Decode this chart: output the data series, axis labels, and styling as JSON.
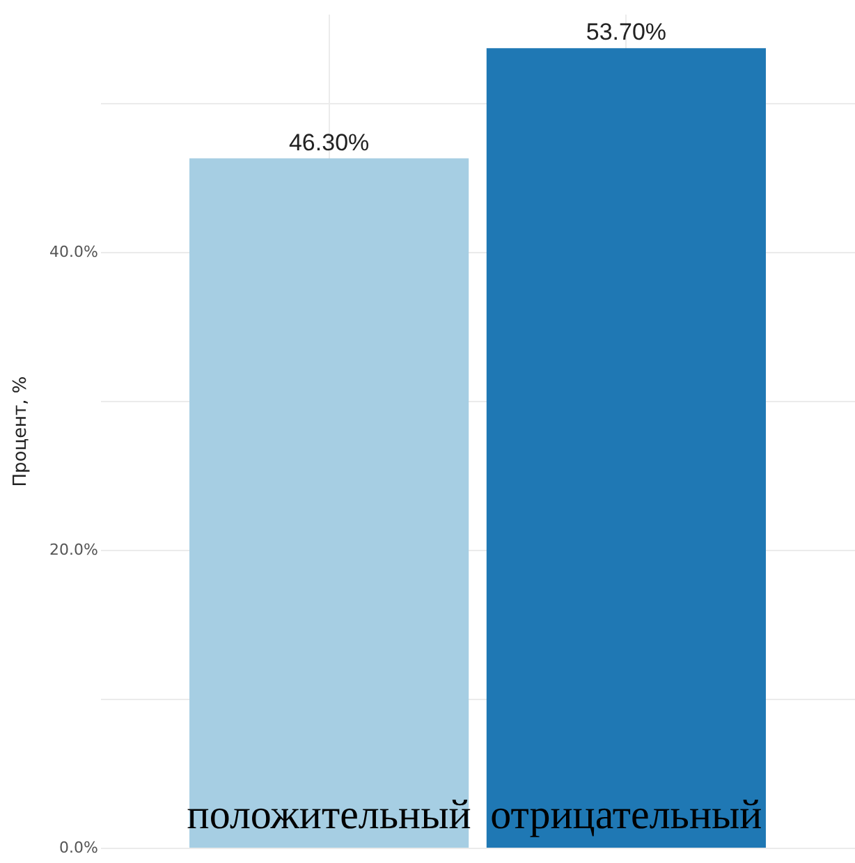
{
  "chart_data": {
    "type": "bar",
    "ylabel": "Процент, %",
    "categories": [
      "положительный",
      "отрицательный"
    ],
    "values": [
      46.3,
      53.7
    ],
    "colors": [
      "#a6cee3",
      "#1f78b4"
    ],
    "value_labels": [
      "46.30%",
      "53.70%"
    ],
    "ylim": [
      0,
      56
    ],
    "yticks": [
      {
        "value": 0,
        "label": "0.0%"
      },
      {
        "value": 10,
        "label": null
      },
      {
        "value": 20,
        "label": "20.0%"
      },
      {
        "value": 30,
        "label": null
      },
      {
        "value": 40,
        "label": "40.0%"
      },
      {
        "value": 50,
        "label": null
      }
    ],
    "grid": true
  }
}
